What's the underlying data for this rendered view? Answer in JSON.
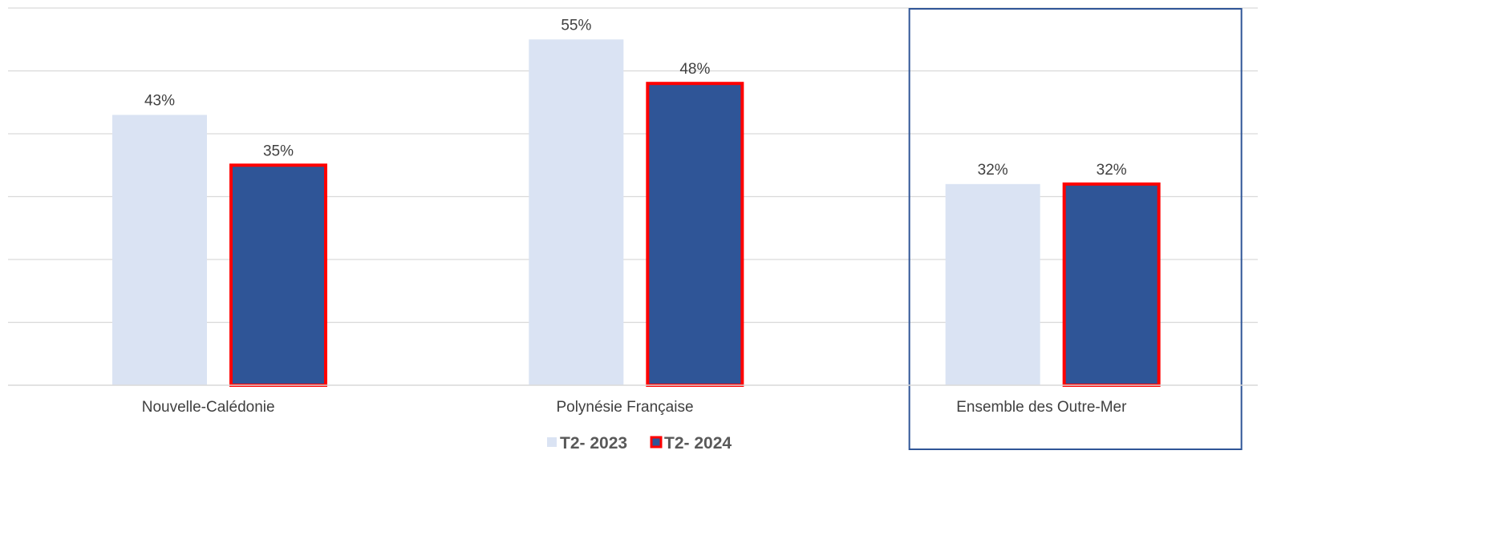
{
  "chart_data": {
    "type": "bar",
    "categories": [
      "Nouvelle-Calédonie",
      "Polynésie Française",
      "Ensemble des Outre-Mer"
    ],
    "series": [
      {
        "name": "T2- 2023",
        "values": [
          43,
          55,
          32
        ],
        "labels": [
          "43%",
          "55%",
          "32%"
        ],
        "color": "#dae3f3"
      },
      {
        "name": "T2- 2024",
        "values": [
          35,
          48,
          32
        ],
        "labels": [
          "35%",
          "48%",
          "32%"
        ],
        "color": "#2f5597",
        "outline_color": "#ff0000"
      }
    ],
    "ylim": [
      0,
      60
    ],
    "grid": true,
    "legend_position": "bottom",
    "highlighted_category": "Ensemble des Outre-Mer",
    "highlight_color": "#2f5597"
  }
}
